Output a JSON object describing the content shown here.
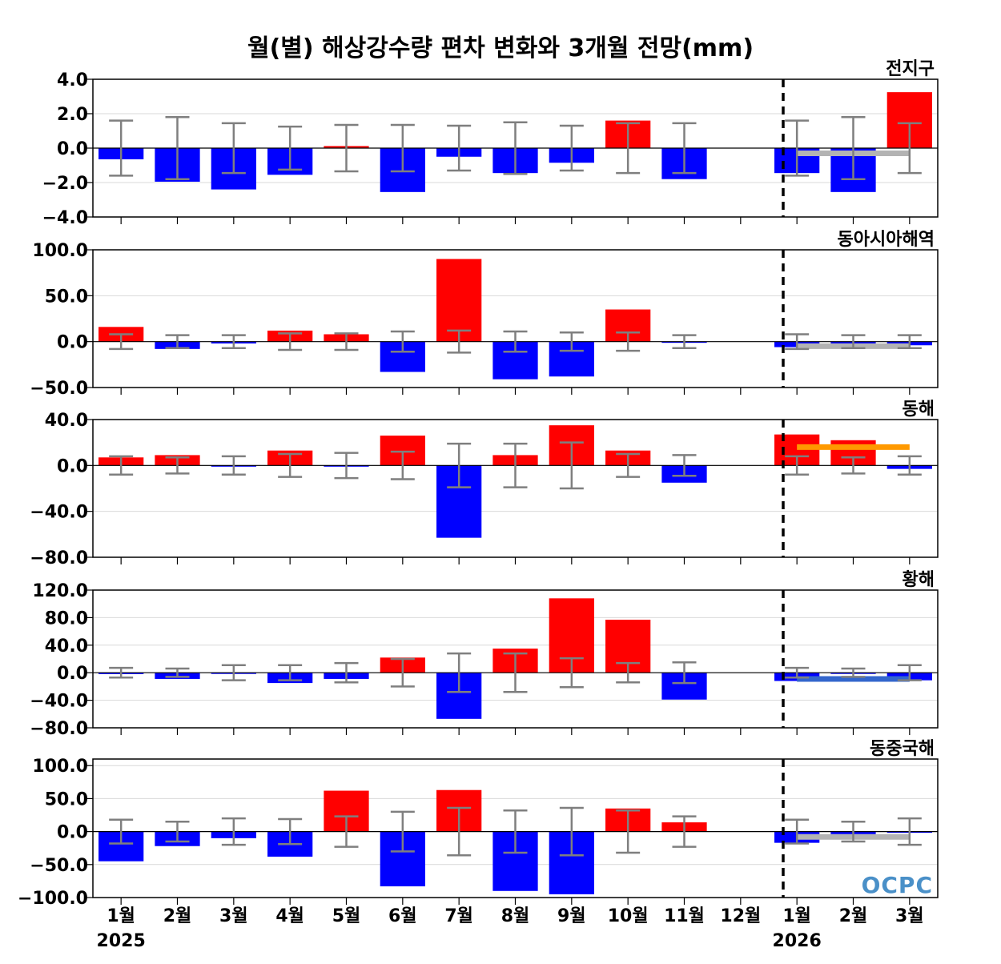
{
  "chart_data": {
    "type": "bar",
    "title": "월(별) 해상강수량 편차 변화와 3개월 전망(mm)",
    "categories": [
      "1월",
      "2월",
      "3월",
      "4월",
      "5월",
      "6월",
      "7월",
      "8월",
      "9월",
      "10월",
      "11월",
      "12월",
      "1월",
      "2월",
      "3월"
    ],
    "year_labels": [
      {
        "index": 0,
        "label": "2025"
      },
      {
        "index": 12,
        "label": "2026"
      }
    ],
    "divider_after_category": "12월",
    "logo_text": "OCPC",
    "colors": {
      "positive": "#ff0000",
      "negative": "#0000ff",
      "errorbar": "#7f7f7f",
      "outlook_gray": "#b3b3b3",
      "outlook_orange": "#ff9900",
      "outlook_blue": "#3366cc"
    },
    "panels": [
      {
        "name": "전지구",
        "ylim": [
          -4,
          4
        ],
        "yticks": [
          "4.0",
          "2.0",
          "0.0",
          "−2.0",
          "−4.0"
        ],
        "ytick_values": [
          4,
          2,
          0,
          -2,
          -4
        ],
        "values": [
          -0.65,
          -1.95,
          -2.4,
          -1.55,
          0.12,
          -2.55,
          -0.5,
          -1.45,
          -0.85,
          1.6,
          -1.8,
          0.0,
          -1.45,
          -2.55,
          3.25
        ],
        "errorbars": [
          1.6,
          1.8,
          1.45,
          1.25,
          1.35,
          1.35,
          1.3,
          1.5,
          1.3,
          1.45,
          1.45,
          null,
          1.6,
          1.8,
          1.45
        ],
        "outlook": {
          "value": -0.3,
          "color": "#b3b3b3"
        }
      },
      {
        "name": "동아시아해역",
        "ylim": [
          -50,
          100
        ],
        "yticks": [
          "100.0",
          "50.0",
          "0.0",
          "−50.0"
        ],
        "ytick_values": [
          100,
          50,
          0,
          -50
        ],
        "values": [
          16,
          -8,
          -2,
          12,
          8,
          -33,
          90,
          -41,
          -38,
          35,
          -1,
          0,
          -6,
          -4,
          -4
        ],
        "errorbars": [
          8,
          7,
          7,
          9,
          9,
          11,
          12,
          11,
          10,
          10,
          7,
          null,
          8,
          7,
          7
        ],
        "outlook": {
          "value": -5,
          "color": "#b3b3b3"
        }
      },
      {
        "name": "동해",
        "ylim": [
          -80,
          40
        ],
        "yticks": [
          "40.0",
          "0.0",
          "−40.0",
          "−80.0"
        ],
        "ytick_values": [
          40,
          0,
          -40,
          -80
        ],
        "values": [
          7,
          9,
          -1,
          13,
          -1,
          26,
          -63,
          9,
          35,
          13,
          -15,
          0,
          27,
          22,
          -3
        ],
        "errorbars": [
          8,
          7,
          8,
          10,
          11,
          12,
          19,
          19,
          20,
          10,
          9,
          null,
          8,
          7,
          8
        ],
        "outlook": {
          "value": 16,
          "color": "#ff9900"
        }
      },
      {
        "name": "황해",
        "ylim": [
          -80,
          120
        ],
        "yticks": [
          "120.0",
          "80.0",
          "40.0",
          "0.0",
          "−40.0",
          "−80.0"
        ],
        "ytick_values": [
          120,
          80,
          40,
          0,
          -40,
          -80
        ],
        "values": [
          -2,
          -9,
          -1,
          -15,
          -9,
          22,
          -67,
          35,
          108,
          77,
          -39,
          0,
          -12,
          -1,
          -11
        ],
        "errorbars": [
          7,
          6,
          11,
          11,
          14,
          20,
          28,
          28,
          21,
          14,
          15,
          null,
          7,
          6,
          11
        ],
        "outlook": {
          "value": -9,
          "color": "#3366cc"
        }
      },
      {
        "name": "동중국해",
        "ylim": [
          -100,
          110
        ],
        "yticks": [
          "100.0",
          "50.0",
          "0.0",
          "−50.0",
          "−100.0"
        ],
        "ytick_values": [
          100,
          50,
          0,
          -50,
          -100
        ],
        "values": [
          -45,
          -22,
          -10,
          -38,
          62,
          -83,
          63,
          -90,
          -95,
          35,
          14,
          0,
          -17,
          -5,
          -1
        ],
        "errorbars": [
          18,
          15,
          20,
          19,
          23,
          30,
          36,
          32,
          36,
          32,
          23,
          null,
          18,
          15,
          20
        ],
        "outlook": {
          "value": -8,
          "color": "#b3b3b3"
        }
      }
    ]
  }
}
